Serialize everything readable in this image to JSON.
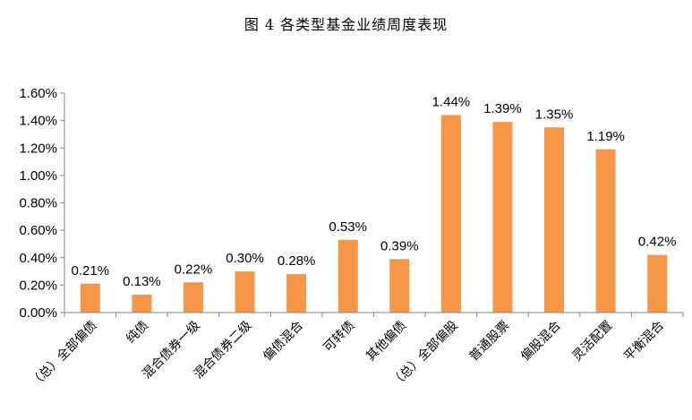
{
  "chart_data": {
    "type": "bar",
    "title": "图 4  各类型基金业绩周度表现",
    "categories": [
      "（总）全部偏债",
      "纯债",
      "混合债券一级",
      "混合债券二级",
      "偏债混合",
      "可转债",
      "其他偏债",
      "（总）全部偏股",
      "普通股票",
      "偏股混合",
      "灵活配置",
      "平衡混合"
    ],
    "values": [
      0.21,
      0.13,
      0.22,
      0.3,
      0.28,
      0.53,
      0.39,
      1.44,
      1.39,
      1.35,
      1.19,
      0.42
    ],
    "data_labels": [
      "0.21%",
      "0.13%",
      "0.22%",
      "0.30%",
      "0.28%",
      "0.53%",
      "0.39%",
      "1.44%",
      "1.39%",
      "1.35%",
      "1.19%",
      "0.42%"
    ],
    "yticks": [
      "0.00%",
      "0.20%",
      "0.40%",
      "0.60%",
      "0.80%",
      "1.00%",
      "1.20%",
      "1.40%",
      "1.60%"
    ],
    "ylim": [
      0,
      1.6
    ],
    "unit": "%",
    "xlabel": "",
    "ylabel": "",
    "grid": false,
    "legend": "none",
    "colors": {
      "bar": "#F79646",
      "axis": "#868686"
    }
  }
}
